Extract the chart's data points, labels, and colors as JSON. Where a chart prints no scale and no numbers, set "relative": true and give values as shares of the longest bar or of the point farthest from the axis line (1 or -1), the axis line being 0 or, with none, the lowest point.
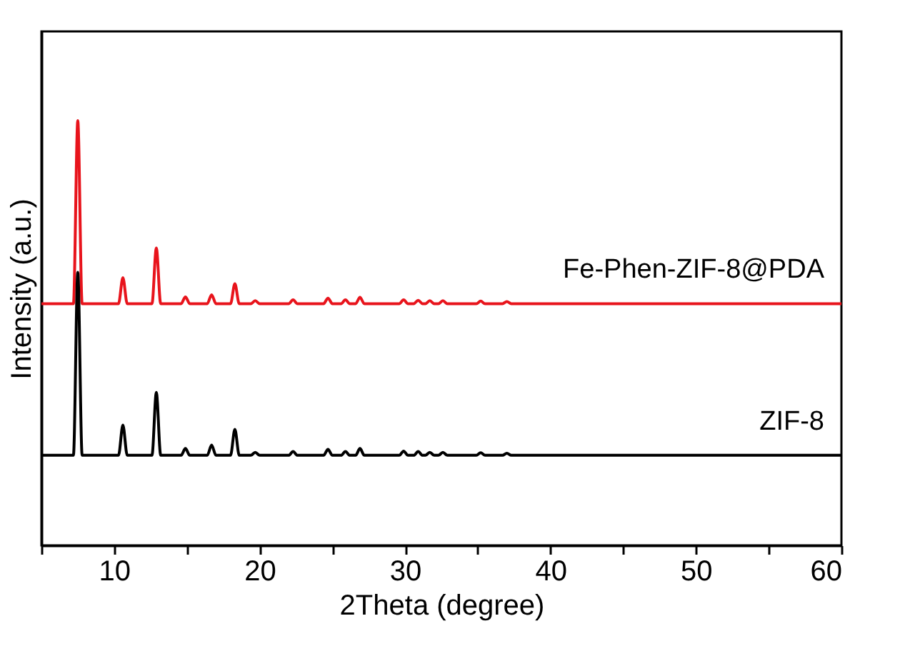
{
  "chart_data": {
    "type": "line",
    "relative": true,
    "xlabel": "2Theta (degree)",
    "ylabel": "Intensity (a.u.)",
    "x": [
      5,
      7.2,
      7.5,
      7.8,
      10.3,
      10.6,
      10.9,
      12.6,
      12.9,
      13.2,
      14.6,
      14.9,
      15.2,
      16.4,
      16.7,
      17.0,
      18.0,
      18.3,
      18.6,
      19.4,
      19.7,
      20.0,
      22.0,
      22.3,
      22.6,
      24.4,
      24.7,
      25.0,
      25.6,
      25.9,
      26.2,
      26.6,
      26.9,
      27.2,
      29.6,
      29.9,
      30.2,
      30.6,
      30.9,
      31.2,
      31.4,
      31.7,
      32.0,
      32.3,
      32.6,
      32.9,
      34.9,
      35.2,
      35.5,
      36.7,
      37.0,
      37.3,
      60
    ],
    "xlim": [
      5,
      60
    ],
    "xticks": [
      {
        "value": 5,
        "label": null
      },
      10,
      {
        "value": 15,
        "label": null
      },
      20,
      {
        "value": 25,
        "label": null
      },
      30,
      {
        "value": 35,
        "label": null
      },
      40,
      {
        "value": 45,
        "label": null
      },
      50,
      {
        "value": 55,
        "label": null
      },
      60
    ],
    "grid": false,
    "line_style": "solid",
    "marker": "none",
    "series": [
      {
        "name": "Fe-Phen-ZIF-8@PDA",
        "color": "#e8141c",
        "values": [
          0.569,
          0.569,
          1.0,
          0.569,
          0.569,
          0.63,
          0.569,
          0.569,
          0.7,
          0.569,
          0.569,
          0.585,
          0.569,
          0.569,
          0.59,
          0.569,
          0.569,
          0.616,
          0.569,
          0.569,
          0.576,
          0.569,
          0.569,
          0.578,
          0.569,
          0.569,
          0.582,
          0.569,
          0.569,
          0.578,
          0.569,
          0.569,
          0.584,
          0.569,
          0.569,
          0.578,
          0.569,
          0.569,
          0.577,
          0.569,
          0.569,
          0.576,
          0.569,
          0.569,
          0.576,
          0.569,
          0.569,
          0.575,
          0.569,
          0.569,
          0.574,
          0.569,
          0.569
        ]
      },
      {
        "name": "ZIF-8",
        "color": "#000000",
        "values": [
          0.212,
          0.212,
          0.643,
          0.212,
          0.212,
          0.283,
          0.212,
          0.212,
          0.36,
          0.212,
          0.212,
          0.228,
          0.212,
          0.212,
          0.236,
          0.212,
          0.212,
          0.273,
          0.212,
          0.212,
          0.219,
          0.212,
          0.212,
          0.221,
          0.212,
          0.212,
          0.226,
          0.212,
          0.212,
          0.221,
          0.212,
          0.212,
          0.228,
          0.212,
          0.212,
          0.222,
          0.212,
          0.212,
          0.221,
          0.212,
          0.212,
          0.219,
          0.212,
          0.212,
          0.219,
          0.212,
          0.212,
          0.218,
          0.212,
          0.212,
          0.217,
          0.212,
          0.212
        ]
      }
    ]
  }
}
